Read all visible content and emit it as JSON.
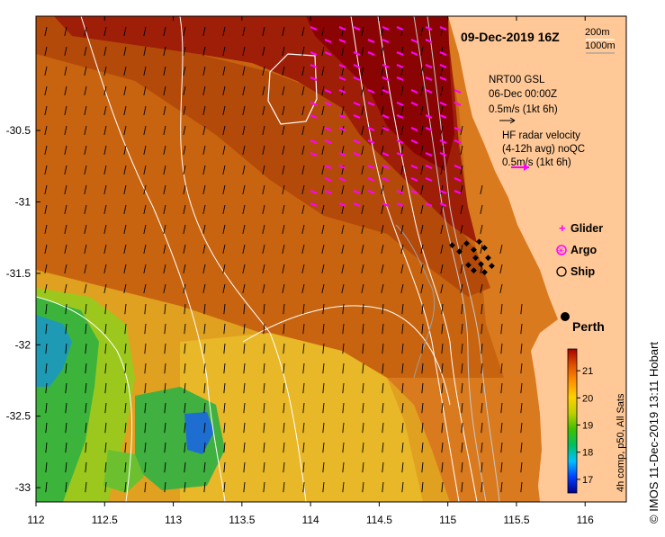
{
  "title": "09-Dec-2019 16Z",
  "depth_legend": [
    "200m",
    "1000m"
  ],
  "model_vectors": {
    "label": "NRT00 GSL",
    "date": "06-Dec 00:00Z",
    "scale": "0.5m/s (1kt 6h)"
  },
  "radar_vectors": {
    "label": "HF radar velocity",
    "window": "(4-12h avg) noQC",
    "scale": "0.5m/s (1kt 6h)",
    "color": "#ff00ff"
  },
  "symbols": [
    {
      "label": "Glider",
      "marker": "plus",
      "color": "#ff00ff"
    },
    {
      "label": "Argo",
      "marker": "circle-star",
      "color": "#ff00ff"
    },
    {
      "label": "Ship",
      "marker": "circle",
      "color": "#000000"
    }
  ],
  "city": "Perth",
  "axes": {
    "x_ticks": [
      "112",
      "112.5",
      "113",
      "113.5",
      "114",
      "114.5",
      "115",
      "115.5",
      "116"
    ],
    "y_ticks": [
      "-30.5",
      "-31",
      "-31.5",
      "-32",
      "-32.5",
      "-33"
    ],
    "xlim": [
      112,
      116.3
    ],
    "ylim": [
      -33.1,
      -29.7
    ]
  },
  "colorbar": {
    "label": "4h comp, p50, All Sats",
    "ticks": [
      "17",
      "18",
      "19",
      "20",
      "21"
    ],
    "range": [
      16.5,
      21.8
    ],
    "colors": [
      "#00008b",
      "#0040ff",
      "#00c0ff",
      "#00c060",
      "#40c000",
      "#c0d000",
      "#ffd000",
      "#ff9000",
      "#e05000",
      "#a80000"
    ]
  },
  "land_color": "#ffc896",
  "credit": "© IMOS 11-Dec-2019 13:11 Hobart"
}
